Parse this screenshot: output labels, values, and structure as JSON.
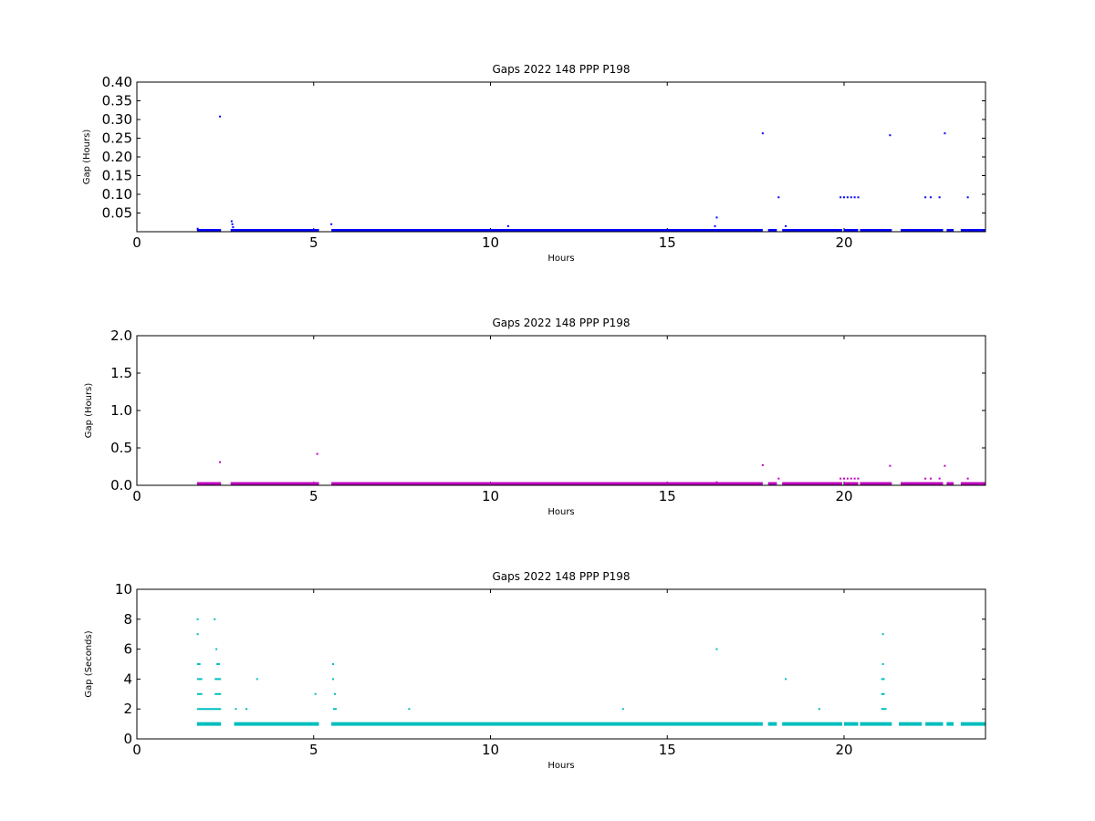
{
  "chart_data": [
    {
      "type": "scatter",
      "title": "Gaps 2022 148 PPP  P198",
      "xlabel": "Hours",
      "ylabel": "Gap (Hours)",
      "xlim": [
        0,
        24
      ],
      "ylim": [
        0,
        0.4
      ],
      "xticks": [
        "0",
        "5",
        "10",
        "15",
        "20"
      ],
      "yticks": [
        "0.05",
        "0.10",
        "0.15",
        "0.20",
        "0.25",
        "0.30",
        "0.35",
        "0.40"
      ],
      "color": "#0000ff",
      "series": [
        {
          "baseline_segments": [
            [
              1.7,
              2.38
            ],
            [
              2.65,
              5.15
            ],
            [
              5.5,
              17.7
            ],
            [
              17.85,
              18.1
            ],
            [
              18.25,
              19.95
            ],
            [
              20.0,
              20.4
            ],
            [
              20.45,
              21.35
            ],
            [
              21.6,
              22.8
            ],
            [
              22.9,
              23.1
            ],
            [
              23.3,
              24.0
            ]
          ],
          "baseline_value": 0.0028,
          "points": [
            {
              "x": 1.72,
              "y": 0.008
            },
            {
              "x": 2.35,
              "y": 0.308
            },
            {
              "x": 2.68,
              "y": 0.028
            },
            {
              "x": 2.7,
              "y": 0.02
            },
            {
              "x": 2.72,
              "y": 0.012
            },
            {
              "x": 5.5,
              "y": 0.02
            },
            {
              "x": 10.5,
              "y": 0.015
            },
            {
              "x": 16.35,
              "y": 0.015
            },
            {
              "x": 16.4,
              "y": 0.038
            },
            {
              "x": 17.7,
              "y": 0.263
            },
            {
              "x": 18.15,
              "y": 0.092
            },
            {
              "x": 18.35,
              "y": 0.015
            },
            {
              "x": 19.9,
              "y": 0.092
            },
            {
              "x": 20.0,
              "y": 0.092
            },
            {
              "x": 20.1,
              "y": 0.092
            },
            {
              "x": 20.2,
              "y": 0.092
            },
            {
              "x": 20.3,
              "y": 0.092
            },
            {
              "x": 20.4,
              "y": 0.092
            },
            {
              "x": 21.3,
              "y": 0.258
            },
            {
              "x": 22.3,
              "y": 0.092
            },
            {
              "x": 22.45,
              "y": 0.092
            },
            {
              "x": 22.7,
              "y": 0.092
            },
            {
              "x": 22.85,
              "y": 0.263
            },
            {
              "x": 23.5,
              "y": 0.092
            }
          ]
        }
      ]
    },
    {
      "type": "scatter",
      "title": "Gaps 2022 148 PPP  P198",
      "xlabel": "Hours",
      "ylabel": "Gap (Hours)",
      "xlim": [
        0,
        24
      ],
      "ylim": [
        0,
        2.0
      ],
      "xticks": [
        "0",
        "5",
        "10",
        "15",
        "20"
      ],
      "yticks": [
        "0.0",
        "0.5",
        "1.0",
        "1.5",
        "2.0"
      ],
      "color": "#bf00bf",
      "series": [
        {
          "baseline_segments": [
            [
              1.7,
              2.38
            ],
            [
              2.65,
              5.15
            ],
            [
              5.5,
              17.7
            ],
            [
              17.85,
              18.1
            ],
            [
              18.25,
              19.95
            ],
            [
              20.0,
              20.4
            ],
            [
              20.45,
              21.35
            ],
            [
              21.6,
              22.8
            ],
            [
              22.9,
              23.1
            ],
            [
              23.3,
              24.0
            ]
          ],
          "baseline_value": 0.01,
          "points": [
            {
              "x": 2.35,
              "y": 0.31
            },
            {
              "x": 5.1,
              "y": 0.42
            },
            {
              "x": 16.4,
              "y": 0.04
            },
            {
              "x": 17.7,
              "y": 0.27
            },
            {
              "x": 18.15,
              "y": 0.09
            },
            {
              "x": 19.9,
              "y": 0.09
            },
            {
              "x": 20.0,
              "y": 0.09
            },
            {
              "x": 20.1,
              "y": 0.09
            },
            {
              "x": 20.2,
              "y": 0.09
            },
            {
              "x": 20.3,
              "y": 0.09
            },
            {
              "x": 20.4,
              "y": 0.09
            },
            {
              "x": 21.3,
              "y": 0.26
            },
            {
              "x": 22.3,
              "y": 0.09
            },
            {
              "x": 22.45,
              "y": 0.09
            },
            {
              "x": 22.7,
              "y": 0.09
            },
            {
              "x": 22.85,
              "y": 0.26
            },
            {
              "x": 23.5,
              "y": 0.09
            }
          ]
        }
      ]
    },
    {
      "type": "scatter",
      "title": "Gaps 2022 148 PPP  P198",
      "xlabel": "Hours",
      "ylabel": "Gap (Seconds)",
      "xlim": [
        0,
        24
      ],
      "ylim": [
        0,
        10
      ],
      "xticks": [
        "0",
        "5",
        "10",
        "15",
        "20"
      ],
      "yticks": [
        "0",
        "2",
        "4",
        "6",
        "8",
        "10"
      ],
      "color": "#00bfbf",
      "series": [
        {
          "baseline_segments": [
            [
              1.7,
              2.38
            ],
            [
              2.75,
              5.15
            ],
            [
              5.5,
              17.7
            ],
            [
              17.85,
              18.1
            ],
            [
              18.25,
              19.95
            ],
            [
              20.0,
              20.4
            ],
            [
              20.45,
              21.35
            ],
            [
              21.55,
              22.2
            ],
            [
              22.3,
              22.8
            ],
            [
              22.9,
              23.1
            ],
            [
              23.3,
              24.0
            ]
          ],
          "baseline_value": 1,
          "segments": [
            {
              "x0": 1.7,
              "x1": 2.38,
              "y": 2
            },
            {
              "x0": 1.7,
              "x1": 1.85,
              "y": 3
            },
            {
              "x0": 2.2,
              "x1": 2.38,
              "y": 3
            },
            {
              "x0": 1.7,
              "x1": 1.85,
              "y": 4
            },
            {
              "x0": 2.2,
              "x1": 2.38,
              "y": 4
            },
            {
              "x0": 1.7,
              "x1": 1.8,
              "y": 5
            },
            {
              "x0": 2.25,
              "x1": 2.35,
              "y": 5
            },
            {
              "x0": 5.55,
              "x1": 5.65,
              "y": 2
            },
            {
              "x0": 21.05,
              "x1": 21.2,
              "y": 2
            },
            {
              "x0": 21.05,
              "x1": 21.15,
              "y": 3
            },
            {
              "x0": 21.05,
              "x1": 21.15,
              "y": 4
            }
          ],
          "points": [
            {
              "x": 1.72,
              "y": 8
            },
            {
              "x": 1.72,
              "y": 7
            },
            {
              "x": 2.2,
              "y": 8
            },
            {
              "x": 2.25,
              "y": 6
            },
            {
              "x": 2.8,
              "y": 2
            },
            {
              "x": 3.1,
              "y": 2
            },
            {
              "x": 3.4,
              "y": 4
            },
            {
              "x": 5.05,
              "y": 3
            },
            {
              "x": 5.55,
              "y": 5
            },
            {
              "x": 5.55,
              "y": 4
            },
            {
              "x": 5.6,
              "y": 3
            },
            {
              "x": 7.7,
              "y": 2
            },
            {
              "x": 13.75,
              "y": 2
            },
            {
              "x": 16.4,
              "y": 6
            },
            {
              "x": 18.35,
              "y": 4
            },
            {
              "x": 19.3,
              "y": 2
            },
            {
              "x": 21.1,
              "y": 7
            },
            {
              "x": 21.1,
              "y": 5
            }
          ]
        }
      ]
    }
  ]
}
